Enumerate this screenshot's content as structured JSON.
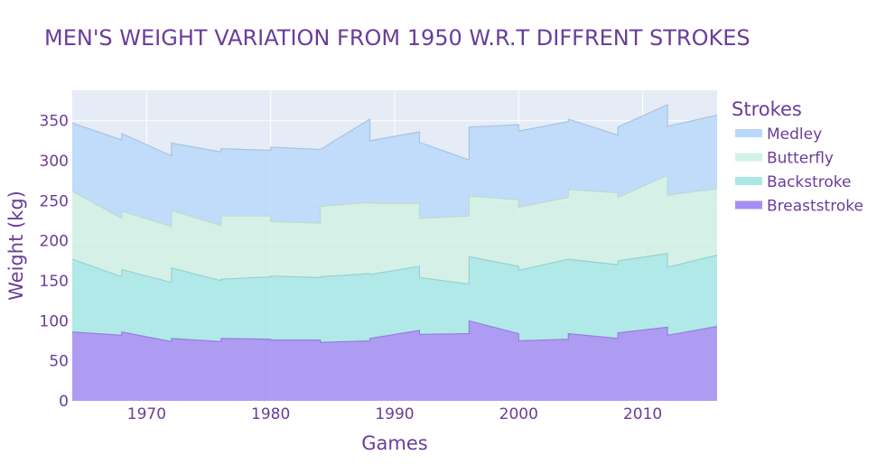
{
  "chart_data": {
    "type": "area",
    "title": "MEN'S WEIGHT VARIATION  FROM 1950 W.R.T DIFFRENT STROKES",
    "xlabel": "Games",
    "ylabel": "Weight (kg)",
    "legend_title": "Strokes",
    "legend_position": "right",
    "stacked": true,
    "grid": true,
    "xlim": [
      1964,
      2016
    ],
    "ylim": [
      0,
      388
    ],
    "x_ticks": [
      1970,
      1980,
      1990,
      2000,
      2010
    ],
    "y_ticks": [
      0,
      50,
      100,
      150,
      200,
      250,
      300,
      350
    ],
    "series": [
      {
        "name": "Breaststroke",
        "color": "#a58ef2",
        "points": [
          {
            "x": 1964,
            "y": 86
          },
          {
            "x": 1968,
            "y": 82
          },
          {
            "x": 1968,
            "y": 86
          },
          {
            "x": 1972,
            "y": 74
          },
          {
            "x": 1972,
            "y": 78
          },
          {
            "x": 1976,
            "y": 74
          },
          {
            "x": 1976,
            "y": 78
          },
          {
            "x": 1980,
            "y": 77
          },
          {
            "x": 1980,
            "y": 76
          },
          {
            "x": 1984,
            "y": 76
          },
          {
            "x": 1984,
            "y": 73
          },
          {
            "x": 1988,
            "y": 75
          },
          {
            "x": 1988,
            "y": 78
          },
          {
            "x": 1992,
            "y": 88
          },
          {
            "x": 1992,
            "y": 83
          },
          {
            "x": 1996,
            "y": 84
          },
          {
            "x": 1996,
            "y": 100
          },
          {
            "x": 2000,
            "y": 84
          },
          {
            "x": 2000,
            "y": 75
          },
          {
            "x": 2004,
            "y": 77
          },
          {
            "x": 2004,
            "y": 84
          },
          {
            "x": 2008,
            "y": 78
          },
          {
            "x": 2008,
            "y": 85
          },
          {
            "x": 2012,
            "y": 92
          },
          {
            "x": 2012,
            "y": 82
          },
          {
            "x": 2016,
            "y": 93
          }
        ]
      },
      {
        "name": "Backstroke",
        "color": "#a8e9e6",
        "points": [
          {
            "x": 1964,
            "y": 91
          },
          {
            "x": 1968,
            "y": 73
          },
          {
            "x": 1968,
            "y": 78
          },
          {
            "x": 1972,
            "y": 74
          },
          {
            "x": 1972,
            "y": 88
          },
          {
            "x": 1976,
            "y": 76
          },
          {
            "x": 1976,
            "y": 74
          },
          {
            "x": 1980,
            "y": 78
          },
          {
            "x": 1980,
            "y": 80
          },
          {
            "x": 1984,
            "y": 78
          },
          {
            "x": 1984,
            "y": 82
          },
          {
            "x": 1988,
            "y": 84
          },
          {
            "x": 1988,
            "y": 80
          },
          {
            "x": 1992,
            "y": 80
          },
          {
            "x": 1992,
            "y": 71
          },
          {
            "x": 1996,
            "y": 62
          },
          {
            "x": 1996,
            "y": 80
          },
          {
            "x": 2000,
            "y": 84
          },
          {
            "x": 2000,
            "y": 88
          },
          {
            "x": 2004,
            "y": 100
          },
          {
            "x": 2004,
            "y": 93
          },
          {
            "x": 2008,
            "y": 92
          },
          {
            "x": 2008,
            "y": 90
          },
          {
            "x": 2012,
            "y": 92
          },
          {
            "x": 2012,
            "y": 85
          },
          {
            "x": 2016,
            "y": 89
          }
        ]
      },
      {
        "name": "Butterfly",
        "color": "#d2f2e4",
        "points": [
          {
            "x": 1964,
            "y": 85
          },
          {
            "x": 1968,
            "y": 73
          },
          {
            "x": 1968,
            "y": 73
          },
          {
            "x": 1972,
            "y": 70
          },
          {
            "x": 1972,
            "y": 72
          },
          {
            "x": 1976,
            "y": 69
          },
          {
            "x": 1976,
            "y": 79
          },
          {
            "x": 1980,
            "y": 76
          },
          {
            "x": 1980,
            "y": 68
          },
          {
            "x": 1984,
            "y": 68
          },
          {
            "x": 1984,
            "y": 88
          },
          {
            "x": 1988,
            "y": 89
          },
          {
            "x": 1988,
            "y": 89
          },
          {
            "x": 1992,
            "y": 79
          },
          {
            "x": 1992,
            "y": 74
          },
          {
            "x": 1996,
            "y": 85
          },
          {
            "x": 1996,
            "y": 76
          },
          {
            "x": 2000,
            "y": 83
          },
          {
            "x": 2000,
            "y": 79
          },
          {
            "x": 2004,
            "y": 77
          },
          {
            "x": 2004,
            "y": 87
          },
          {
            "x": 2008,
            "y": 90
          },
          {
            "x": 2008,
            "y": 79
          },
          {
            "x": 2012,
            "y": 98
          },
          {
            "x": 2012,
            "y": 90
          },
          {
            "x": 2016,
            "y": 83
          }
        ]
      },
      {
        "name": "Medley",
        "color": "#bad9fa",
        "points": [
          {
            "x": 1964,
            "y": 85
          },
          {
            "x": 1968,
            "y": 98
          },
          {
            "x": 1968,
            "y": 97
          },
          {
            "x": 1972,
            "y": 88
          },
          {
            "x": 1972,
            "y": 84
          },
          {
            "x": 1976,
            "y": 92
          },
          {
            "x": 1976,
            "y": 84
          },
          {
            "x": 1980,
            "y": 82
          },
          {
            "x": 1980,
            "y": 93
          },
          {
            "x": 1984,
            "y": 92
          },
          {
            "x": 1984,
            "y": 71
          },
          {
            "x": 1988,
            "y": 104
          },
          {
            "x": 1988,
            "y": 78
          },
          {
            "x": 1992,
            "y": 89
          },
          {
            "x": 1992,
            "y": 95
          },
          {
            "x": 1996,
            "y": 70
          },
          {
            "x": 1996,
            "y": 86
          },
          {
            "x": 2000,
            "y": 94
          },
          {
            "x": 2000,
            "y": 95
          },
          {
            "x": 2004,
            "y": 95
          },
          {
            "x": 2004,
            "y": 88
          },
          {
            "x": 2008,
            "y": 72
          },
          {
            "x": 2008,
            "y": 88
          },
          {
            "x": 2012,
            "y": 88
          },
          {
            "x": 2012,
            "y": 86
          },
          {
            "x": 2016,
            "y": 92
          }
        ]
      }
    ],
    "legend_order": [
      "Medley",
      "Butterfly",
      "Backstroke",
      "Breaststroke"
    ]
  }
}
